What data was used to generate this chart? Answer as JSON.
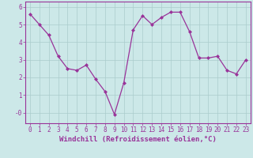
{
  "x": [
    0,
    1,
    2,
    3,
    4,
    5,
    6,
    7,
    8,
    9,
    10,
    11,
    12,
    13,
    14,
    15,
    16,
    17,
    18,
    19,
    20,
    21,
    22,
    23
  ],
  "y": [
    5.6,
    5.0,
    4.4,
    3.2,
    2.5,
    2.4,
    2.7,
    1.9,
    1.2,
    -0.1,
    1.7,
    4.7,
    5.5,
    5.0,
    5.4,
    5.7,
    5.7,
    4.6,
    3.1,
    3.1,
    3.2,
    2.4,
    2.2,
    3.0
  ],
  "line_color": "#993399",
  "marker": "D",
  "markersize": 2.0,
  "linewidth": 0.9,
  "bg_color": "#cce8e8",
  "grid_color": "#aacccc",
  "xlabel": "Windchill (Refroidissement éolien,°C)",
  "xlabel_fontsize": 6.5,
  "tick_fontsize": 5.5,
  "ylim": [
    -0.6,
    6.3
  ],
  "xlim": [
    -0.5,
    23.5
  ],
  "ytick_vals": [
    0,
    1,
    2,
    3,
    4,
    5,
    6
  ],
  "ytick_labels": [
    "-0",
    "1",
    "2",
    "3",
    "4",
    "5",
    "6"
  ],
  "xticks": [
    0,
    1,
    2,
    3,
    4,
    5,
    6,
    7,
    8,
    9,
    10,
    11,
    12,
    13,
    14,
    15,
    16,
    17,
    18,
    19,
    20,
    21,
    22,
    23
  ]
}
